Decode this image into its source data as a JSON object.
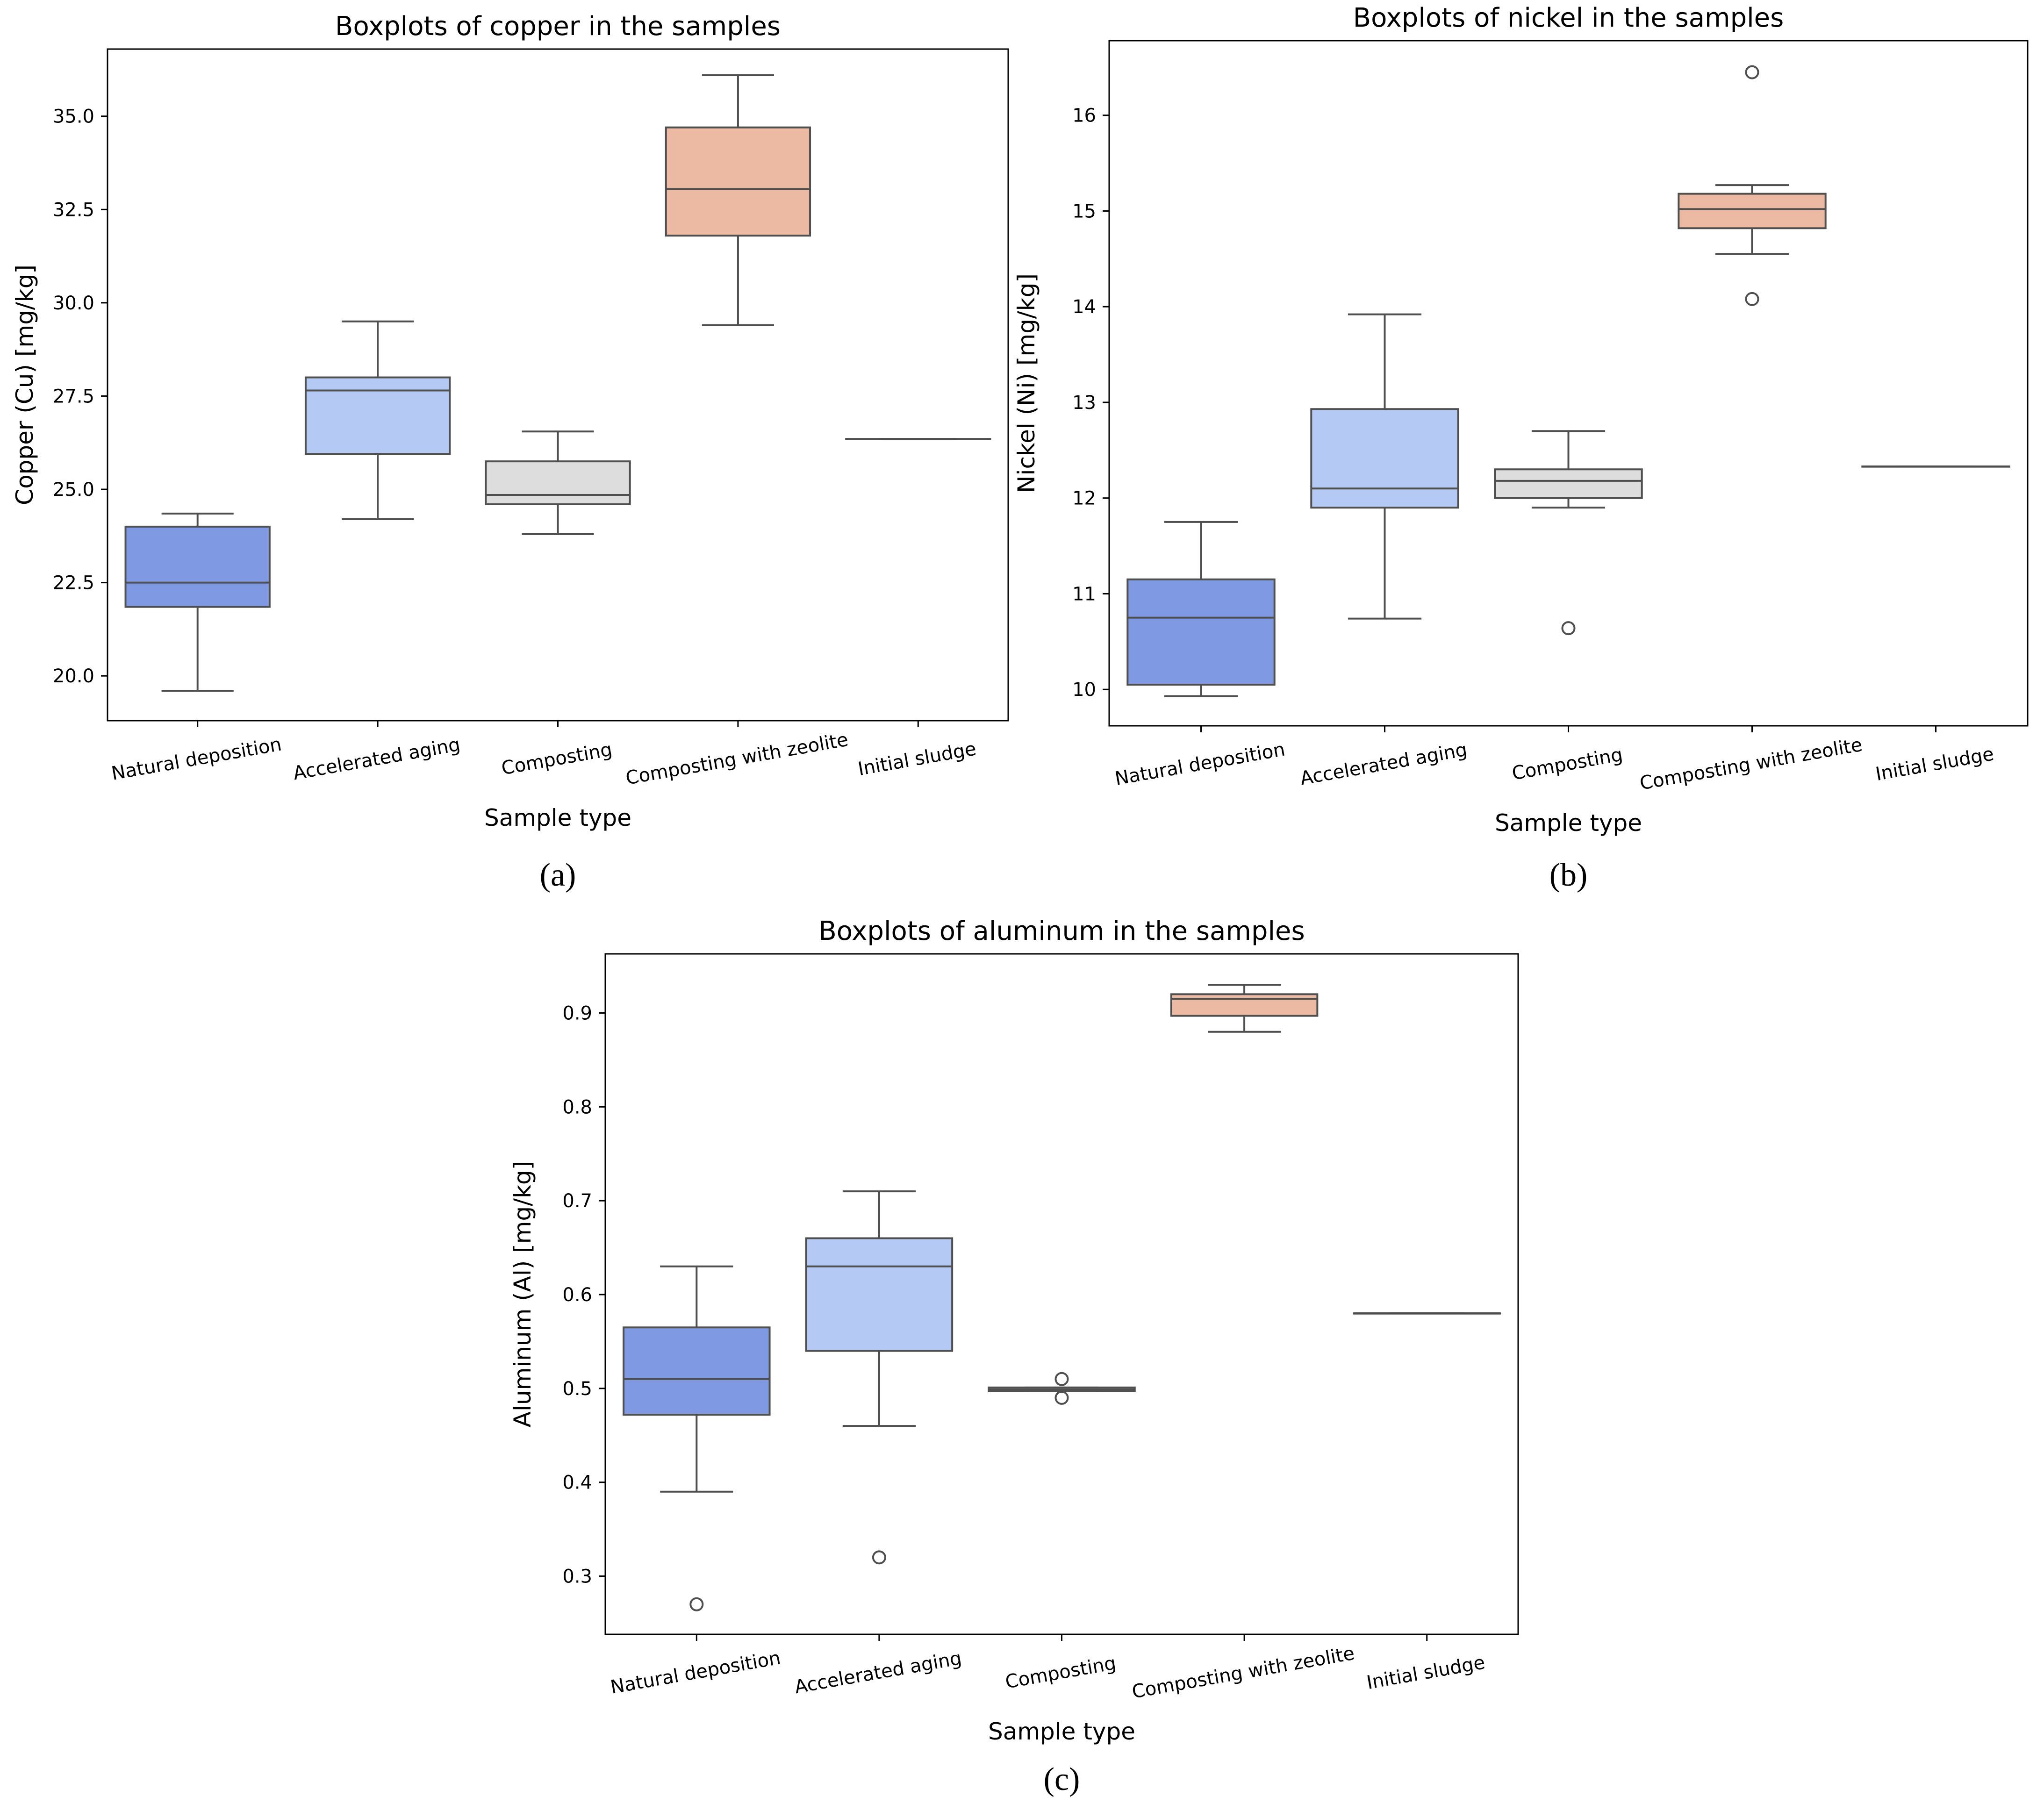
{
  "chart_data": [
    {
      "type": "boxplot",
      "panel_label": "(a)",
      "title": "Boxplots of copper in the samples",
      "xlabel": "Sample type",
      "ylabel": "Copper (Cu) [mg/kg]",
      "ylim": [
        18.8,
        36.8
      ],
      "yticks": [
        20.0,
        22.5,
        25.0,
        27.5,
        30.0,
        32.5,
        35.0
      ],
      "ytick_labels": [
        "20.0",
        "22.5",
        "25.0",
        "27.5",
        "30.0",
        "32.5",
        "35.0"
      ],
      "categories": [
        "Natural deposition",
        "Accelerated aging",
        "Composting",
        "Composting with zeolite",
        "Initial sludge"
      ],
      "colors": [
        "#7f9ae3",
        "#b4c9f3",
        "#dddddd",
        "#ecbaa3",
        "#aab6cf"
      ],
      "boxes": [
        {
          "whislo": 19.6,
          "q1": 21.85,
          "med": 22.5,
          "q3": 24.0,
          "whishi": 24.35,
          "fliers": []
        },
        {
          "whislo": 24.2,
          "q1": 25.95,
          "med": 27.65,
          "q3": 28.0,
          "whishi": 29.5,
          "fliers": []
        },
        {
          "whislo": 23.8,
          "q1": 24.6,
          "med": 24.85,
          "q3": 25.75,
          "whishi": 26.55,
          "fliers": []
        },
        {
          "whislo": 29.4,
          "q1": 31.8,
          "med": 33.05,
          "q3": 34.7,
          "whishi": 36.1,
          "fliers": []
        },
        {
          "whislo": 26.35,
          "q1": 26.35,
          "med": 26.35,
          "q3": 26.35,
          "whishi": 26.35,
          "fliers": []
        }
      ]
    },
    {
      "type": "boxplot",
      "panel_label": "(b)",
      "title": "Boxplots of nickel in the samples",
      "xlabel": "Sample type",
      "ylabel": "Nickel (Ni) [mg/kg]",
      "ylim": [
        9.62,
        16.78
      ],
      "yticks": [
        10,
        11,
        12,
        13,
        14,
        15,
        16
      ],
      "ytick_labels": [
        "10",
        "11",
        "12",
        "13",
        "14",
        "15",
        "16"
      ],
      "categories": [
        "Natural deposition",
        "Accelerated aging",
        "Composting",
        "Composting with zeolite",
        "Initial sludge"
      ],
      "colors": [
        "#7f9ae3",
        "#b4c9f3",
        "#dddddd",
        "#ecbaa3",
        "#aab6cf"
      ],
      "boxes": [
        {
          "whislo": 9.93,
          "q1": 10.05,
          "med": 10.75,
          "q3": 11.15,
          "whishi": 11.75,
          "fliers": []
        },
        {
          "whislo": 10.74,
          "q1": 11.9,
          "med": 12.1,
          "q3": 12.93,
          "whishi": 13.92,
          "fliers": []
        },
        {
          "whislo": 11.9,
          "q1": 12.0,
          "med": 12.18,
          "q3": 12.3,
          "whishi": 12.7,
          "fliers": [
            10.64
          ]
        },
        {
          "whislo": 14.55,
          "q1": 14.82,
          "med": 15.02,
          "q3": 15.18,
          "whishi": 15.27,
          "fliers": [
            16.45,
            14.08
          ]
        },
        {
          "whislo": 12.33,
          "q1": 12.33,
          "med": 12.33,
          "q3": 12.33,
          "whishi": 12.33,
          "fliers": []
        }
      ]
    },
    {
      "type": "boxplot",
      "panel_label": "(c)",
      "title": "Boxplots of aluminum in the samples",
      "xlabel": "Sample type",
      "ylabel": "Aluminum (Al) [mg/kg]",
      "ylim": [
        0.238,
        0.963
      ],
      "yticks": [
        0.3,
        0.4,
        0.5,
        0.6,
        0.7,
        0.8,
        0.9
      ],
      "ytick_labels": [
        "0.3",
        "0.4",
        "0.5",
        "0.6",
        "0.7",
        "0.8",
        "0.9"
      ],
      "categories": [
        "Natural deposition",
        "Accelerated aging",
        "Composting",
        "Composting with zeolite",
        "Initial sludge"
      ],
      "colors": [
        "#7f9ae3",
        "#b4c9f3",
        "#dddddd",
        "#ecbaa3",
        "#aab6cf"
      ],
      "boxes": [
        {
          "whislo": 0.39,
          "q1": 0.472,
          "med": 0.51,
          "q3": 0.565,
          "whishi": 0.63,
          "fliers": [
            0.27
          ]
        },
        {
          "whislo": 0.46,
          "q1": 0.54,
          "med": 0.63,
          "q3": 0.66,
          "whishi": 0.71,
          "fliers": [
            0.32
          ]
        },
        {
          "whislo": 0.497,
          "q1": 0.497,
          "med": 0.499,
          "q3": 0.501,
          "whishi": 0.501,
          "fliers": [
            0.51,
            0.49
          ]
        },
        {
          "whislo": 0.88,
          "q1": 0.897,
          "med": 0.915,
          "q3": 0.92,
          "whishi": 0.93,
          "fliers": []
        },
        {
          "whislo": 0.58,
          "q1": 0.58,
          "med": 0.58,
          "q3": 0.58,
          "whishi": 0.58,
          "fliers": []
        }
      ]
    }
  ]
}
